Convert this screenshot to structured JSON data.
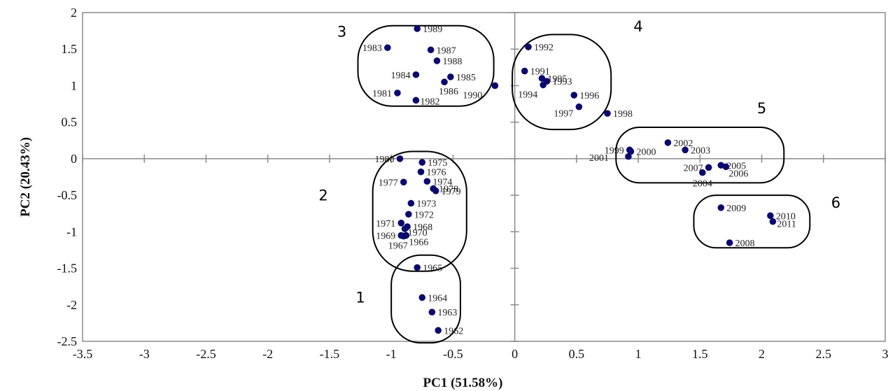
{
  "chart_data": {
    "type": "scatter",
    "title": "",
    "xlabel": "PC1 (51.58%)",
    "ylabel": "PC2 (20.43%)",
    "xlim": [
      -3.5,
      3
    ],
    "ylim": [
      -2.5,
      2
    ],
    "x_ticks": [
      "-3.5",
      "-3",
      "-2.5",
      "-2",
      "-1.5",
      "-1",
      "-0.5",
      "0",
      "0.5",
      "1",
      "1.5",
      "2",
      "2.5",
      "3"
    ],
    "y_ticks": [
      "2",
      "1.5",
      "1",
      "0.5",
      "0",
      "-0.5",
      "-1",
      "-1.5",
      "-2",
      "-2.5"
    ],
    "grid": false,
    "marker_color": "#0a0a6e",
    "points": [
      {
        "label": "1962",
        "x": -0.62,
        "y": -2.35
      },
      {
        "label": "1963",
        "x": -0.67,
        "y": -2.1
      },
      {
        "label": "1964",
        "x": -0.75,
        "y": -1.9
      },
      {
        "label": "1965",
        "x": -0.79,
        "y": -1.49
      },
      {
        "label": "1966",
        "x": -0.88,
        "y": -1.05
      },
      {
        "label": "1967",
        "x": -0.9,
        "y": -1.06
      },
      {
        "label": "1968",
        "x": -0.87,
        "y": -0.93
      },
      {
        "label": "1969",
        "x": -0.92,
        "y": -1.05
      },
      {
        "label": "1970",
        "x": -0.89,
        "y": -0.96
      },
      {
        "label": "1971",
        "x": -0.92,
        "y": -0.88
      },
      {
        "label": "1972",
        "x": -0.86,
        "y": -0.76
      },
      {
        "label": "1973",
        "x": -0.84,
        "y": -0.61
      },
      {
        "label": "1974",
        "x": -0.71,
        "y": -0.31
      },
      {
        "label": "1975",
        "x": -0.75,
        "y": -0.05
      },
      {
        "label": "1976",
        "x": -0.76,
        "y": -0.18
      },
      {
        "label": "1977",
        "x": -0.9,
        "y": -0.32
      },
      {
        "label": "1978",
        "x": -0.66,
        "y": -0.41
      },
      {
        "label": "1979",
        "x": -0.64,
        "y": -0.44
      },
      {
        "label": "1980",
        "x": -0.93,
        "y": 0.0
      },
      {
        "label": "1981",
        "x": -0.95,
        "y": 0.9
      },
      {
        "label": "1982",
        "x": -0.8,
        "y": 0.8
      },
      {
        "label": "1983",
        "x": -1.03,
        "y": 1.52
      },
      {
        "label": "1984",
        "x": -0.8,
        "y": 1.15
      },
      {
        "label": "1985",
        "x": -0.52,
        "y": 1.12
      },
      {
        "label": "1986",
        "x": -0.57,
        "y": 1.05
      },
      {
        "label": "1987",
        "x": -0.68,
        "y": 1.49
      },
      {
        "label": "1988",
        "x": -0.63,
        "y": 1.34
      },
      {
        "label": "1989",
        "x": -0.79,
        "y": 1.78
      },
      {
        "label": "1990",
        "x": -0.16,
        "y": 1.0
      },
      {
        "label": "1991",
        "x": 0.08,
        "y": 1.2
      },
      {
        "label": "1992",
        "x": 0.11,
        "y": 1.53
      },
      {
        "label": "1993",
        "x": 0.26,
        "y": 1.06
      },
      {
        "label": "1994",
        "x": 0.23,
        "y": 1.01
      },
      {
        "label": "1995",
        "x": 0.22,
        "y": 1.1
      },
      {
        "label": "1996",
        "x": 0.48,
        "y": 0.87
      },
      {
        "label": "1997",
        "x": 0.52,
        "y": 0.71
      },
      {
        "label": "1998",
        "x": 0.75,
        "y": 0.62
      },
      {
        "label": "1999",
        "x": 0.93,
        "y": 0.12
      },
      {
        "label": "2000",
        "x": 0.94,
        "y": 0.1
      },
      {
        "label": "2001",
        "x": 0.92,
        "y": 0.03
      },
      {
        "label": "2002",
        "x": 1.24,
        "y": 0.22
      },
      {
        "label": "2003",
        "x": 1.38,
        "y": 0.12
      },
      {
        "label": "2004",
        "x": 1.52,
        "y": -0.19
      },
      {
        "label": "2005",
        "x": 1.67,
        "y": -0.09
      },
      {
        "label": "2006",
        "x": 1.71,
        "y": -0.11
      },
      {
        "label": "2007",
        "x": 1.57,
        "y": -0.12
      },
      {
        "label": "2008",
        "x": 1.74,
        "y": -1.15
      },
      {
        "label": "2009",
        "x": 1.67,
        "y": -0.67
      },
      {
        "label": "2010",
        "x": 2.07,
        "y": -0.78
      },
      {
        "label": "2011",
        "x": 2.09,
        "y": -0.86
      }
    ],
    "groups": [
      {
        "label": "1",
        "cx": -0.72,
        "cy": -1.92,
        "rx": 0.28,
        "ry": 0.6
      },
      {
        "label": "2",
        "cx": -0.77,
        "cy": -0.72,
        "rx": 0.38,
        "ry": 0.82
      },
      {
        "label": "3",
        "cx": -0.72,
        "cy": 1.27,
        "rx": 0.55,
        "ry": 0.55
      },
      {
        "label": "4",
        "cx": 0.38,
        "cy": 1.05,
        "rx": 0.4,
        "ry": 0.65
      },
      {
        "label": "5",
        "cx": 1.5,
        "cy": 0.05,
        "rx": 0.68,
        "ry": 0.38
      },
      {
        "label": "6",
        "cx": 1.92,
        "cy": -0.86,
        "rx": 0.47,
        "ry": 0.36
      }
    ]
  }
}
